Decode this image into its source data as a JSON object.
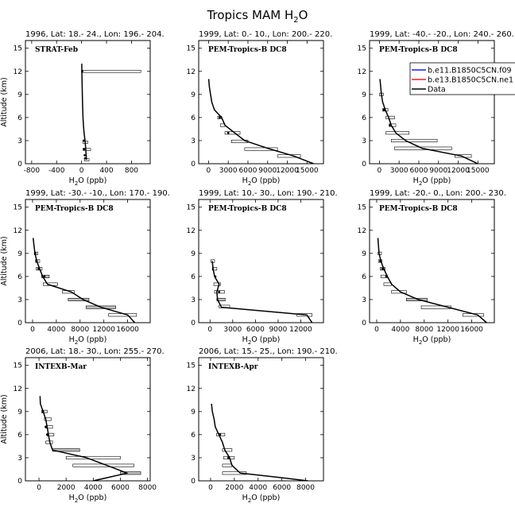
{
  "figure": {
    "title": "Tropics MAM H",
    "title_sub": "2",
    "title_tail": "O"
  },
  "legend": {
    "entries": [
      {
        "label": "b.e11.B1850C5CN.f09",
        "color": "#1a1aff"
      },
      {
        "label": "b.e13.B1850C5CN.ne1",
        "color": "#ff1a1a"
      },
      {
        "label": "Data",
        "color": "#000000"
      }
    ]
  },
  "chart_data": [
    {
      "type": "line",
      "title": "1996, Lat: 18.- 24., Lon: 196.- 204.",
      "inner_label": "STRAT-Feb",
      "xlabel": "H2O (ppb)",
      "ylabel": "Altitude (km)",
      "xlim": [
        -900,
        1100
      ],
      "ylim": [
        0,
        16
      ],
      "xticks": [
        -800,
        -400,
        0,
        400,
        800
      ],
      "yticks": [
        0,
        3,
        6,
        9,
        12,
        15
      ],
      "profile": [
        [
          80,
          0.5
        ],
        [
          75,
          1
        ],
        [
          65,
          2
        ],
        [
          55,
          3
        ],
        [
          40,
          4
        ],
        [
          30,
          5
        ],
        [
          22,
          6
        ],
        [
          15,
          8
        ],
        [
          10,
          10
        ],
        [
          5,
          12
        ],
        [
          3,
          13
        ]
      ],
      "boxes": [
        [
          45,
          120,
          0.5,
          0.3,
          false
        ],
        [
          25,
          145,
          1.85,
          0.3,
          false
        ],
        [
          20,
          100,
          2.8,
          0.3,
          false
        ],
        [
          0,
          950,
          12.0,
          0.3,
          false
        ]
      ],
      "points": [
        [
          55,
          0.7
        ],
        [
          50,
          1.1
        ],
        [
          40,
          1.9
        ],
        [
          35,
          3.0
        ],
        [
          10,
          12.0
        ]
      ]
    },
    {
      "type": "line",
      "title": "1999, Lat: 0.- 10., Lon: 200.- 220.",
      "inner_label": "PEM-Tropics-B DC8",
      "xlabel": "H2O (ppb)",
      "ylabel": "",
      "xlim": [
        -1500,
        17500
      ],
      "ylim": [
        0,
        16
      ],
      "xticks": [
        0,
        3000,
        6000,
        9000,
        12000,
        15000
      ],
      "yticks": [
        0,
        3,
        6,
        9,
        12,
        15
      ],
      "profile": [
        [
          16000,
          0
        ],
        [
          14500,
          0.5
        ],
        [
          13000,
          1
        ],
        [
          9000,
          2
        ],
        [
          5500,
          3
        ],
        [
          4000,
          4
        ],
        [
          2500,
          5
        ],
        [
          2000,
          6
        ],
        [
          900,
          7
        ],
        [
          500,
          8
        ],
        [
          300,
          9
        ],
        [
          120,
          10
        ],
        [
          20,
          11
        ]
      ],
      "boxes": [
        [
          10500,
          14000,
          1.0,
          0.35,
          false
        ],
        [
          5500,
          10500,
          1.9,
          0.35,
          false
        ],
        [
          3500,
          6000,
          2.9,
          0.35,
          false
        ],
        [
          2500,
          4800,
          4.0,
          0.35,
          false
        ],
        [
          1800,
          2500,
          5.0,
          0.35,
          false
        ],
        [
          1400,
          2000,
          6.0,
          0.35,
          false
        ]
      ],
      "points": [
        [
          3000,
          4.0
        ],
        [
          1700,
          6.0
        ]
      ]
    },
    {
      "type": "line",
      "title": "1999, Lat: -40.- -20., Lon: 240.- 260.",
      "inner_label": "PEM-Tropics-B DC8",
      "xlabel": "H2O (ppb)",
      "ylabel": "",
      "xlim": [
        -1500,
        17500
      ],
      "ylim": [
        0,
        16
      ],
      "xticks": [
        0,
        3000,
        6000,
        9000,
        12000,
        15000
      ],
      "yticks": [
        0,
        3,
        6,
        9,
        12,
        15
      ],
      "profile": [
        [
          15000,
          0
        ],
        [
          12500,
          1
        ],
        [
          6500,
          2
        ],
        [
          4000,
          3
        ],
        [
          2500,
          4
        ],
        [
          1800,
          5
        ],
        [
          1400,
          6
        ],
        [
          900,
          7
        ],
        [
          500,
          8
        ],
        [
          300,
          9
        ],
        [
          200,
          10
        ],
        [
          80,
          11
        ]
      ],
      "boxes": [
        [
          11500,
          14000,
          1.0,
          0.35,
          false
        ],
        [
          2300,
          11000,
          2.0,
          0.35,
          false
        ],
        [
          1800,
          8800,
          3.0,
          0.35,
          false
        ],
        [
          1000,
          4500,
          4.0,
          0.35,
          false
        ],
        [
          1500,
          2500,
          5.0,
          0.35,
          false
        ],
        [
          1000,
          2300,
          6.0,
          0.35,
          false
        ],
        [
          500,
          1300,
          7.0,
          0.35,
          false
        ],
        [
          0,
          600,
          9.0,
          0.35,
          false
        ]
      ],
      "points": [
        [
          1600,
          5.0
        ],
        [
          700,
          7.0
        ]
      ]
    },
    {
      "type": "line",
      "title": "1999, Lat: -30.- -10., Lon: 170.- 190.",
      "inner_label": "PEM-Tropics-B DC8",
      "xlabel": "H2O (ppb)",
      "ylabel": "Altitude (km)",
      "xlim": [
        -1200,
        19800
      ],
      "ylim": [
        0,
        16
      ],
      "xticks": [
        0,
        4000,
        8000,
        12000,
        16000
      ],
      "yticks": [
        0,
        3,
        6,
        9,
        12,
        15
      ],
      "profile": [
        [
          17200,
          0
        ],
        [
          16000,
          1
        ],
        [
          11500,
          2
        ],
        [
          8500,
          3
        ],
        [
          6500,
          4
        ],
        [
          2500,
          5
        ],
        [
          1700,
          6
        ],
        [
          1200,
          7
        ],
        [
          700,
          8
        ],
        [
          400,
          9
        ],
        [
          250,
          10
        ],
        [
          100,
          11
        ]
      ],
      "boxes": [
        [
          12800,
          17500,
          1.0,
          0.35,
          false
        ],
        [
          9000,
          14000,
          2.0,
          0.35,
          true
        ],
        [
          6000,
          9500,
          3.0,
          0.35,
          true
        ],
        [
          5000,
          7000,
          4.0,
          0.35,
          false
        ],
        [
          1800,
          4200,
          5.0,
          0.35,
          false
        ],
        [
          1500,
          2800,
          6.0,
          0.35,
          true
        ],
        [
          600,
          1600,
          7.0,
          0.35,
          false
        ],
        [
          500,
          1200,
          8.0,
          0.35,
          false
        ],
        [
          300,
          900,
          9.0,
          0.35,
          false
        ]
      ],
      "points": [
        [
          2000,
          6.0
        ],
        [
          1000,
          7.0
        ],
        [
          700,
          8.0
        ],
        [
          450,
          9.0
        ]
      ]
    },
    {
      "type": "line",
      "title": "1999, Lat: 10.- 30., Lon: 190.- 210.",
      "inner_label": "PEM-Tropics-B DC8",
      "xlabel": "H2O (ppb)",
      "ylabel": "",
      "xlim": [
        -1500,
        15000
      ],
      "ylim": [
        0,
        16
      ],
      "xticks": [
        0,
        3000,
        6000,
        9000,
        12000
      ],
      "yticks": [
        0,
        3,
        6,
        9,
        12,
        15
      ],
      "profile": [
        [
          13500,
          0
        ],
        [
          12800,
          1
        ],
        [
          1500,
          2
        ],
        [
          1000,
          3
        ],
        [
          900,
          4
        ],
        [
          1200,
          5
        ],
        [
          600,
          6
        ],
        [
          400,
          7
        ],
        [
          300,
          8
        ]
      ],
      "boxes": [
        [
          11500,
          13500,
          1.0,
          0.35,
          false
        ],
        [
          1200,
          2600,
          2.1,
          0.35,
          false
        ],
        [
          900,
          2000,
          3.0,
          0.35,
          true
        ],
        [
          600,
          1900,
          4.0,
          0.35,
          false
        ],
        [
          500,
          1400,
          5.0,
          0.35,
          false
        ],
        [
          300,
          900,
          7.0,
          0.35,
          false
        ],
        [
          100,
          600,
          8.0,
          0.35,
          false
        ]
      ],
      "points": [
        [
          1200,
          4.0
        ],
        [
          700,
          6.0
        ]
      ]
    },
    {
      "type": "line",
      "title": "1999, Lat: -20.- 0., Lon: 200.- 230.",
      "inner_label": "PEM-Tropics-B DC8",
      "xlabel": "H2O (ppb)",
      "ylabel": "",
      "xlim": [
        -1200,
        19800
      ],
      "ylim": [
        0,
        16
      ],
      "xticks": [
        0,
        4000,
        8000,
        12000,
        16000
      ],
      "yticks": [
        0,
        3,
        6,
        9,
        12,
        15
      ],
      "profile": [
        [
          18500,
          0
        ],
        [
          17000,
          1
        ],
        [
          12000,
          2
        ],
        [
          7000,
          3
        ],
        [
          4000,
          4
        ],
        [
          2500,
          5
        ],
        [
          1800,
          6
        ],
        [
          1200,
          7
        ],
        [
          700,
          8
        ],
        [
          400,
          9
        ],
        [
          300,
          10
        ],
        [
          200,
          11
        ]
      ],
      "boxes": [
        [
          14500,
          18000,
          1.0,
          0.35,
          false
        ],
        [
          7500,
          12500,
          2.0,
          0.35,
          false
        ],
        [
          5000,
          8500,
          3.0,
          0.35,
          true
        ],
        [
          2500,
          5000,
          4.0,
          0.35,
          false
        ],
        [
          1200,
          2500,
          5.0,
          0.35,
          false
        ],
        [
          700,
          1800,
          6.0,
          0.35,
          false
        ],
        [
          600,
          1400,
          7.0,
          0.35,
          true
        ],
        [
          300,
          900,
          8.0,
          0.35,
          false
        ],
        [
          200,
          800,
          9.0,
          0.35,
          false
        ]
      ],
      "points": [
        [
          1600,
          6.0
        ],
        [
          1000,
          7.0
        ],
        [
          600,
          8.0
        ]
      ]
    },
    {
      "type": "line",
      "title": "2006, Lat: 18.- 30., Lon: 255.- 270.",
      "inner_label": "INTEXB-Mar",
      "xlabel": "H2O (ppb)",
      "ylabel": "Altitude (km)",
      "xlim": [
        -1000,
        8200
      ],
      "ylim": [
        0,
        16
      ],
      "xticks": [
        0,
        2000,
        4000,
        6000,
        8000
      ],
      "yticks": [
        0,
        3,
        6,
        9,
        12,
        15
      ],
      "profile": [
        [
          4000,
          0
        ],
        [
          6500,
          1
        ],
        [
          5000,
          2
        ],
        [
          3500,
          3
        ],
        [
          1000,
          4
        ],
        [
          800,
          5
        ],
        [
          700,
          6
        ],
        [
          600,
          7
        ],
        [
          500,
          8
        ],
        [
          300,
          9
        ],
        [
          100,
          10
        ],
        [
          80,
          11
        ]
      ],
      "boxes": [
        [
          6000,
          7500,
          1.0,
          0.35,
          true
        ],
        [
          2500,
          7000,
          2.0,
          0.35,
          false
        ],
        [
          2000,
          6000,
          3.0,
          0.35,
          false
        ],
        [
          1000,
          3000,
          4.0,
          0.35,
          true
        ],
        [
          500,
          1000,
          5.0,
          0.35,
          false
        ],
        [
          600,
          1100,
          6.0,
          0.35,
          false
        ],
        [
          500,
          1000,
          7.0,
          0.35,
          false
        ],
        [
          400,
          900,
          8.0,
          0.35,
          false
        ],
        [
          200,
          600,
          9.0,
          0.35,
          false
        ]
      ],
      "points": [
        [
          600,
          6.0
        ],
        [
          500,
          7.0
        ],
        [
          300,
          9.0
        ]
      ]
    },
    {
      "type": "line",
      "title": "2006, Lat: 15.- 25., Lon: 190.- 210.",
      "inner_label": "INTEXB-Apr",
      "xlabel": "H2O (ppb)",
      "ylabel": "",
      "xlim": [
        -1000,
        9500
      ],
      "ylim": [
        0,
        16
      ],
      "xticks": [
        0,
        2000,
        4000,
        6000,
        8000
      ],
      "yticks": [
        0,
        3,
        6,
        9,
        12,
        15
      ],
      "profile": [
        [
          8200,
          0
        ],
        [
          5500,
          0.5
        ],
        [
          2500,
          1
        ],
        [
          1800,
          2
        ],
        [
          1600,
          3
        ],
        [
          1200,
          4
        ],
        [
          1000,
          5
        ],
        [
          700,
          6
        ],
        [
          400,
          7
        ],
        [
          300,
          8
        ],
        [
          150,
          9
        ],
        [
          80,
          10
        ]
      ],
      "boxes": [
        [
          1000,
          3000,
          1.0,
          0.35,
          false
        ],
        [
          1000,
          1800,
          2.0,
          0.35,
          false
        ],
        [
          1100,
          2000,
          3.0,
          0.35,
          false
        ],
        [
          1000,
          1800,
          4.0,
          0.35,
          false
        ],
        [
          500,
          1200,
          6.0,
          0.35,
          false
        ]
      ],
      "points": [
        [
          1500,
          3.0
        ],
        [
          800,
          6.0
        ]
      ]
    }
  ]
}
